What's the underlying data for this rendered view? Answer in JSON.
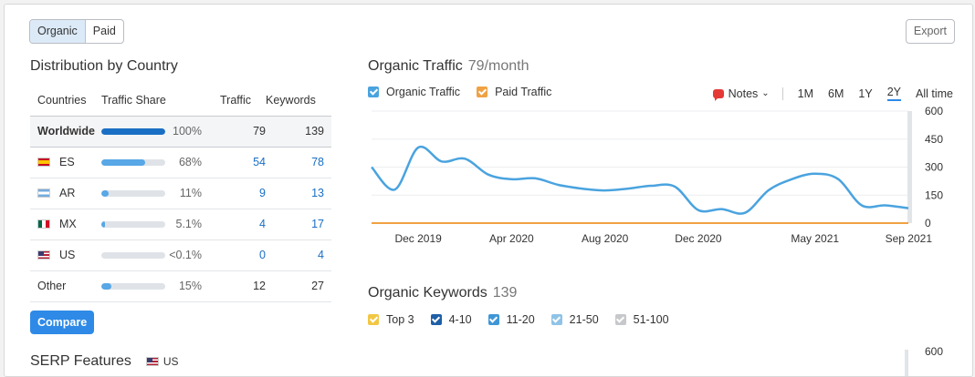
{
  "tabs": [
    {
      "label": "Organic",
      "active": true
    },
    {
      "label": "Paid",
      "active": false
    }
  ],
  "export_label": "Export",
  "distribution": {
    "title": "Distribution by Country",
    "headers": [
      "Countries",
      "Traffic Share",
      "Traffic",
      "Keywords"
    ],
    "rows": [
      {
        "country": "Worldwide",
        "flag": null,
        "share": 1.0,
        "share_label": "100%",
        "traffic": "79",
        "keywords": "139",
        "bar_color": "#1a6fc4",
        "linked": false
      },
      {
        "country": "ES",
        "flag": "spain-flag-icon",
        "share": 0.68,
        "share_label": "68%",
        "traffic": "54",
        "keywords": "78",
        "bar_color": "#58a7e6",
        "linked": true
      },
      {
        "country": "AR",
        "flag": "argentina-flag-icon",
        "share": 0.11,
        "share_label": "11%",
        "traffic": "9",
        "keywords": "13",
        "bar_color": "#58a7e6",
        "linked": true
      },
      {
        "country": "MX",
        "flag": "mexico-flag-icon",
        "share": 0.051,
        "share_label": "5.1%",
        "traffic": "4",
        "keywords": "17",
        "bar_color": "#58a7e6",
        "linked": true
      },
      {
        "country": "US",
        "flag": "us-flag-icon",
        "share": 0.0,
        "share_label": "<0.1%",
        "traffic": "0",
        "keywords": "4",
        "bar_color": "#58a7e6",
        "linked": true
      },
      {
        "country": "Other",
        "flag": null,
        "share": 0.15,
        "share_label": "15%",
        "traffic": "12",
        "keywords": "27",
        "bar_color": "#58a7e6",
        "linked": false
      }
    ],
    "compare_label": "Compare"
  },
  "serp": {
    "title": "SERP Features",
    "country": "US"
  },
  "organic_traffic": {
    "title": "Organic Traffic",
    "subtitle": "79/month",
    "legend": [
      {
        "label": "Organic Traffic",
        "color": "#4aa3df"
      },
      {
        "label": "Paid Traffic",
        "color": "#f0a143"
      }
    ],
    "notes_label": "Notes",
    "ranges": [
      "1M",
      "6M",
      "1Y",
      "2Y",
      "All time"
    ],
    "selected_range": "2Y"
  },
  "chart_data": {
    "type": "line",
    "x": [
      "2019-10",
      "2019-11",
      "2019-12",
      "2020-01",
      "2020-02",
      "2020-03",
      "2020-04",
      "2020-05",
      "2020-06",
      "2020-07",
      "2020-08",
      "2020-09",
      "2020-10",
      "2020-11",
      "2020-12",
      "2021-01",
      "2021-02",
      "2021-03",
      "2021-04",
      "2021-05",
      "2021-06",
      "2021-07",
      "2021-08",
      "2021-09"
    ],
    "x_tick_labels": [
      "Dec 2019",
      "Apr 2020",
      "Aug 2020",
      "Dec 2020",
      "May 2021",
      "Sep 2021"
    ],
    "series": [
      {
        "name": "Organic Traffic",
        "values": [
          300,
          180,
          405,
          330,
          345,
          260,
          235,
          240,
          205,
          185,
          175,
          185,
          200,
          195,
          70,
          75,
          55,
          175,
          235,
          265,
          235,
          95,
          95,
          80
        ]
      },
      {
        "name": "Paid Traffic",
        "values": [
          0,
          0,
          0,
          0,
          0,
          0,
          0,
          0,
          0,
          0,
          0,
          0,
          0,
          0,
          0,
          0,
          0,
          0,
          0,
          0,
          0,
          0,
          0,
          0
        ]
      }
    ],
    "ylim": [
      0,
      600
    ],
    "y_ticks": [
      "600",
      "450",
      "300",
      "150",
      "0"
    ],
    "grid": true
  },
  "organic_keywords": {
    "title": "Organic Keywords",
    "subtitle": "139",
    "legend": [
      {
        "label": "Top 3",
        "color": "#f2c744"
      },
      {
        "label": "4-10",
        "color": "#1f5fa8"
      },
      {
        "label": "11-20",
        "color": "#3f96d6"
      },
      {
        "label": "21-50",
        "color": "#8fc3e8"
      },
      {
        "label": "51-100",
        "color": "#c6c8cb"
      }
    ],
    "y_top_label": "600"
  }
}
